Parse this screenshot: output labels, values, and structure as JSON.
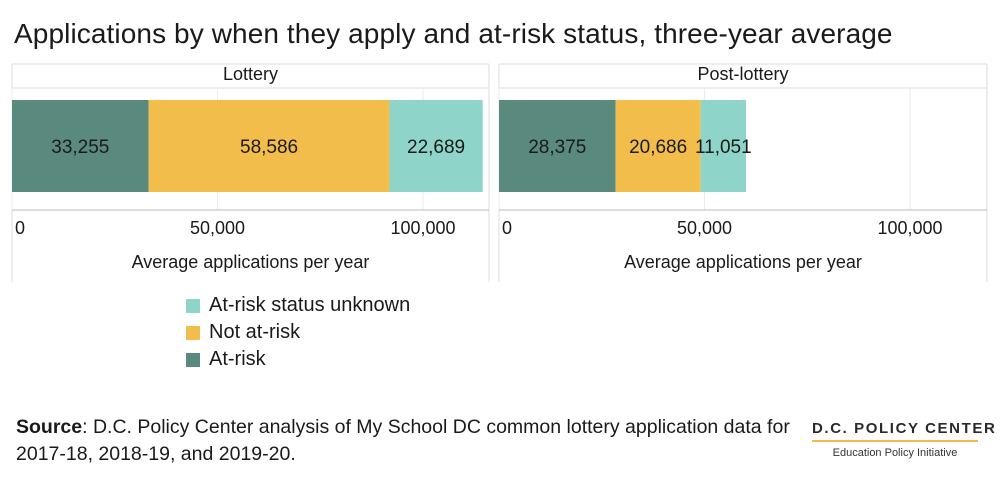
{
  "title": "Applications by when they apply and at-risk status, three-year average",
  "chart_data": {
    "type": "bar",
    "orientation": "horizontal",
    "stacked": true,
    "facets": [
      "Lottery",
      "Post-lottery"
    ],
    "series": [
      {
        "name": "At-risk",
        "color": "#5a8a7e",
        "values": [
          33255,
          28375
        ],
        "labels": [
          "33,255",
          "28,375"
        ]
      },
      {
        "name": "Not at-risk",
        "color": "#f2bd4b",
        "values": [
          58586,
          20686
        ],
        "labels": [
          "58,586",
          "20,686"
        ]
      },
      {
        "name": "At-risk status unknown",
        "color": "#8fd4c8",
        "values": [
          22689,
          11051
        ],
        "labels": [
          "22,689",
          "11,051"
        ]
      }
    ],
    "xlabel": "Average applications per year",
    "xlim": [
      0,
      115000
    ],
    "xticks": [
      0,
      50000,
      100000
    ],
    "xtick_labels": [
      "0",
      "50,000",
      "100,000"
    ],
    "grid": true,
    "legend_position": "bottom-left",
    "legend_order": [
      "At-risk status unknown",
      "Not at-risk",
      "At-risk"
    ]
  },
  "source": {
    "label": "Source",
    "text": ": D.C. Policy Center analysis of My School DC common lottery application data for 2017-18, 2018-19, and 2019-20."
  },
  "brand": {
    "name": "D.C. POLICY CENTER",
    "subtitle": "Education Policy Initiative"
  }
}
